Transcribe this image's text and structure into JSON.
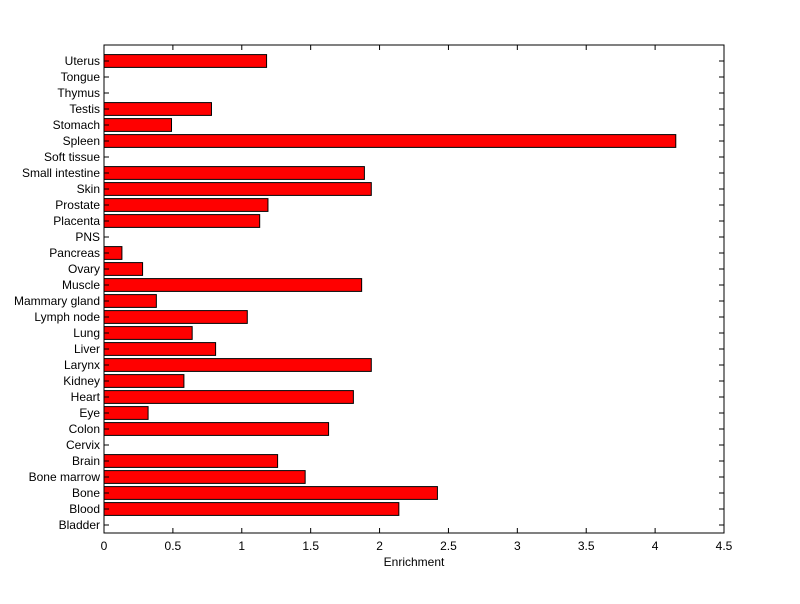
{
  "chart_data": {
    "type": "bar",
    "orientation": "horizontal",
    "title": "",
    "xlabel": "Enrichment",
    "ylabel": "",
    "xlim": [
      0,
      4.5
    ],
    "xticks": [
      "0",
      "0.5",
      "1",
      "1.5",
      "2",
      "2.5",
      "3",
      "3.5",
      "4",
      "4.5"
    ],
    "categories": [
      "Bladder",
      "Blood",
      "Bone",
      "Bone marrow",
      "Brain",
      "Cervix",
      "Colon",
      "Eye",
      "Heart",
      "Kidney",
      "Larynx",
      "Liver",
      "Lung",
      "Lymph node",
      "Mammary gland",
      "Muscle",
      "Ovary",
      "Pancreas",
      "PNS",
      "Placenta",
      "Prostate",
      "Skin",
      "Small intestine",
      "Soft tissue",
      "Spleen",
      "Stomach",
      "Testis",
      "Thymus",
      "Tongue",
      "Uterus"
    ],
    "values": [
      0,
      2.14,
      2.42,
      1.46,
      1.26,
      0,
      1.63,
      0.32,
      1.81,
      0.58,
      1.94,
      0.81,
      0.64,
      1.04,
      0.38,
      1.87,
      0.28,
      0.13,
      0,
      1.13,
      1.19,
      1.94,
      1.89,
      0,
      4.15,
      0.49,
      0.78,
      0,
      0,
      1.18
    ],
    "bar_color": "#ff0000",
    "grid": false,
    "legend": "none"
  }
}
